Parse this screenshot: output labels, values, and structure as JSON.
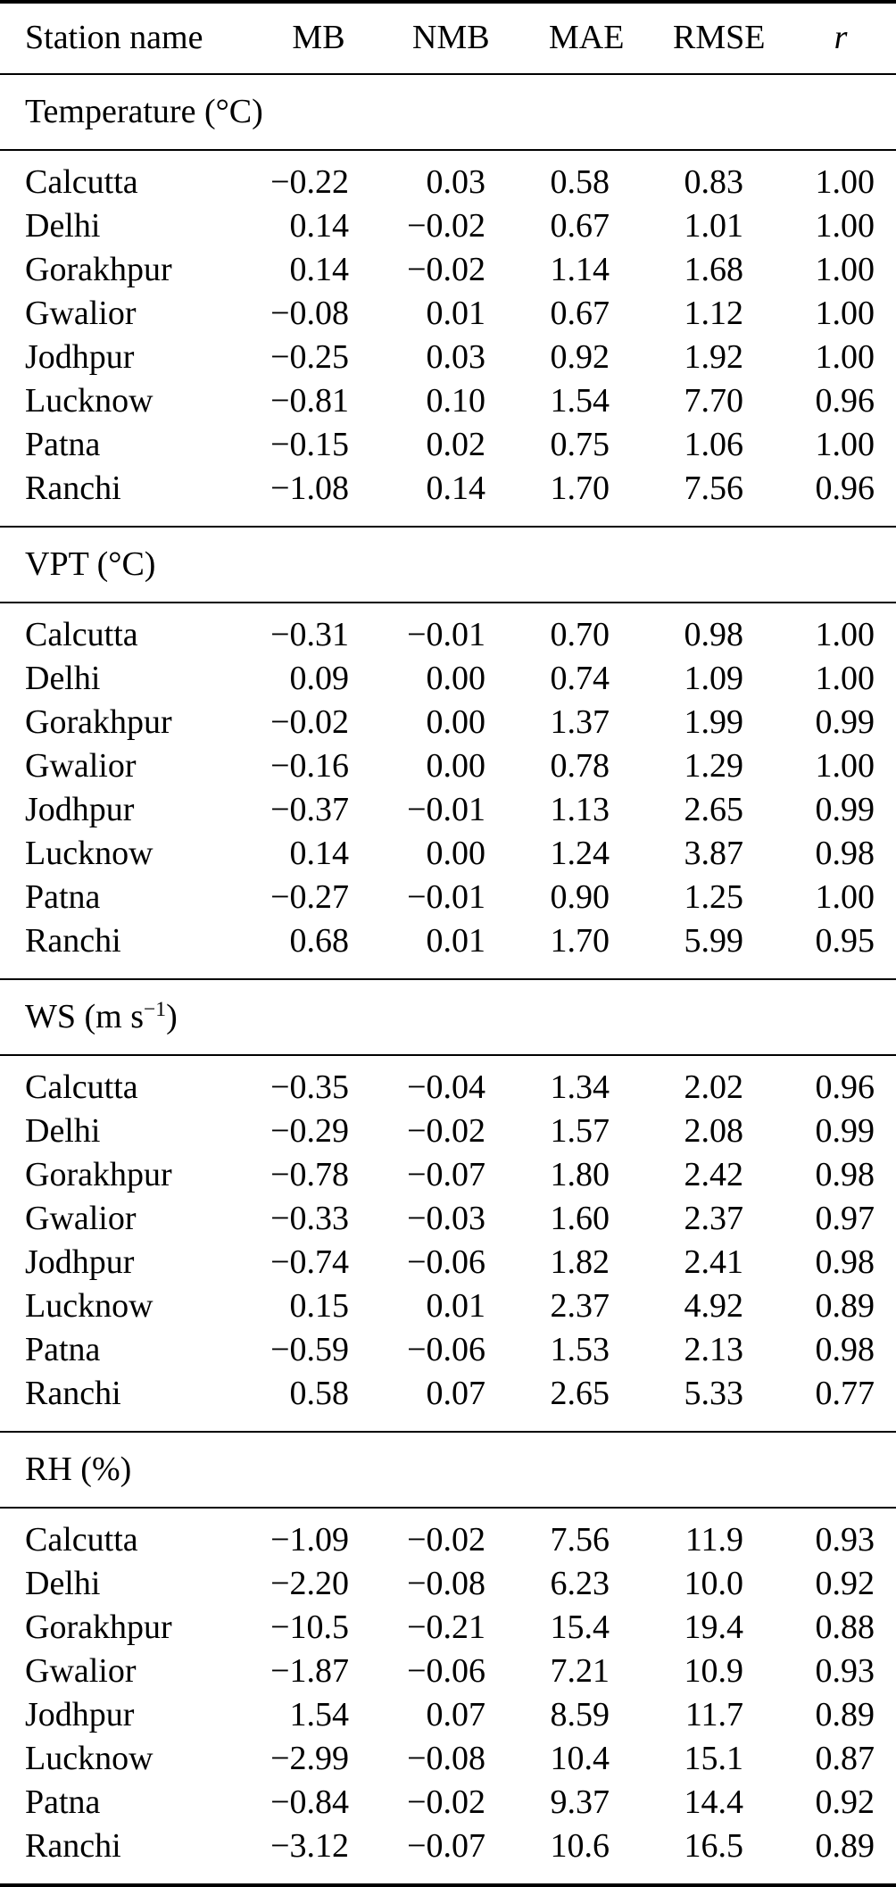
{
  "table": {
    "header": [
      "Station name",
      "MB",
      "NMB",
      "MAE",
      "RMSE",
      "r"
    ],
    "sections": [
      {
        "label": "Temperature (°C)",
        "label_sup": "",
        "label_end": "",
        "rows": [
          [
            "Calcutta",
            "−0.22",
            "0.03",
            "0.58",
            "0.83",
            "1.00"
          ],
          [
            "Delhi",
            "0.14",
            "−0.02",
            "0.67",
            "1.01",
            "1.00"
          ],
          [
            "Gorakhpur",
            "0.14",
            "−0.02",
            "1.14",
            "1.68",
            "1.00"
          ],
          [
            "Gwalior",
            "−0.08",
            "0.01",
            "0.67",
            "1.12",
            "1.00"
          ],
          [
            "Jodhpur",
            "−0.25",
            "0.03",
            "0.92",
            "1.92",
            "1.00"
          ],
          [
            "Lucknow",
            "−0.81",
            "0.10",
            "1.54",
            "7.70",
            "0.96"
          ],
          [
            "Patna",
            "−0.15",
            "0.02",
            "0.75",
            "1.06",
            "1.00"
          ],
          [
            "Ranchi",
            "−1.08",
            "0.14",
            "1.70",
            "7.56",
            "0.96"
          ]
        ]
      },
      {
        "label": "VPT (°C)",
        "label_sup": "",
        "label_end": "",
        "rows": [
          [
            "Calcutta",
            "−0.31",
            "−0.01",
            "0.70",
            "0.98",
            "1.00"
          ],
          [
            "Delhi",
            "0.09",
            "0.00",
            "0.74",
            "1.09",
            "1.00"
          ],
          [
            "Gorakhpur",
            "−0.02",
            "0.00",
            "1.37",
            "1.99",
            "0.99"
          ],
          [
            "Gwalior",
            "−0.16",
            "0.00",
            "0.78",
            "1.29",
            "1.00"
          ],
          [
            "Jodhpur",
            "−0.37",
            "−0.01",
            "1.13",
            "2.65",
            "0.99"
          ],
          [
            "Lucknow",
            "0.14",
            "0.00",
            "1.24",
            "3.87",
            "0.98"
          ],
          [
            "Patna",
            "−0.27",
            "−0.01",
            "0.90",
            "1.25",
            "1.00"
          ],
          [
            "Ranchi",
            "0.68",
            "0.01",
            "1.70",
            "5.99",
            "0.95"
          ]
        ]
      },
      {
        "label": "WS (m s",
        "label_sup": "−1",
        "label_end": ")",
        "rows": [
          [
            "Calcutta",
            "−0.35",
            "−0.04",
            "1.34",
            "2.02",
            "0.96"
          ],
          [
            "Delhi",
            "−0.29",
            "−0.02",
            "1.57",
            "2.08",
            "0.99"
          ],
          [
            "Gorakhpur",
            "−0.78",
            "−0.07",
            "1.80",
            "2.42",
            "0.98"
          ],
          [
            "Gwalior",
            "−0.33",
            "−0.03",
            "1.60",
            "2.37",
            "0.97"
          ],
          [
            "Jodhpur",
            "−0.74",
            "−0.06",
            "1.82",
            "2.41",
            "0.98"
          ],
          [
            "Lucknow",
            "0.15",
            "0.01",
            "2.37",
            "4.92",
            "0.89"
          ],
          [
            "Patna",
            "−0.59",
            "−0.06",
            "1.53",
            "2.13",
            "0.98"
          ],
          [
            "Ranchi",
            "0.58",
            "0.07",
            "2.65",
            "5.33",
            "0.77"
          ]
        ]
      },
      {
        "label": "RH (%)",
        "label_sup": "",
        "label_end": "",
        "rows": [
          [
            "Calcutta",
            "−1.09",
            "−0.02",
            "7.56",
            "11.9",
            "0.93"
          ],
          [
            "Delhi",
            "−2.20",
            "−0.08",
            "6.23",
            "10.0",
            "0.92"
          ],
          [
            "Gorakhpur",
            "−10.5",
            "−0.21",
            "15.4",
            "19.4",
            "0.88"
          ],
          [
            "Gwalior",
            "−1.87",
            "−0.06",
            "7.21",
            "10.9",
            "0.93"
          ],
          [
            "Jodhpur",
            "1.54",
            "0.07",
            "8.59",
            "11.7",
            "0.89"
          ],
          [
            "Lucknow",
            "−2.99",
            "−0.08",
            "10.4",
            "15.1",
            "0.87"
          ],
          [
            "Patna",
            "−0.84",
            "−0.02",
            "9.37",
            "14.4",
            "0.92"
          ],
          [
            "Ranchi",
            "−3.12",
            "−0.07",
            "10.6",
            "16.5",
            "0.89"
          ]
        ]
      }
    ]
  }
}
